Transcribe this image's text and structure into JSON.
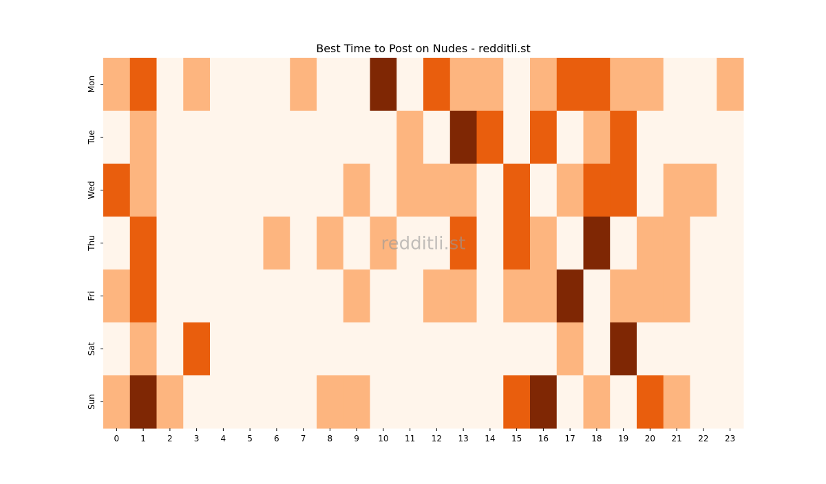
{
  "chart_data": {
    "type": "heatmap",
    "title": "Best Time to Post on Nudes - redditli.st",
    "annotation": "redditli.st",
    "x": [
      "0",
      "1",
      "2",
      "3",
      "4",
      "5",
      "6",
      "7",
      "8",
      "9",
      "10",
      "11",
      "12",
      "13",
      "14",
      "15",
      "16",
      "17",
      "18",
      "19",
      "20",
      "21",
      "22",
      "23"
    ],
    "categories": [
      "Mon",
      "Tue",
      "Wed",
      "Thu",
      "Fri",
      "Sat",
      "Sun"
    ],
    "cmap": [
      "#fff5eb",
      "#fdb57f",
      "#e95e0d",
      "#7f2704"
    ],
    "values": [
      [
        1,
        2,
        0,
        1,
        0,
        0,
        0,
        1,
        0,
        0,
        3,
        0,
        2,
        1,
        1,
        0,
        1,
        2,
        2,
        1,
        1,
        0,
        0,
        1
      ],
      [
        0,
        1,
        0,
        0,
        0,
        0,
        0,
        0,
        0,
        0,
        0,
        1,
        0,
        3,
        2,
        0,
        2,
        0,
        1,
        2,
        0,
        0,
        0,
        0
      ],
      [
        2,
        1,
        0,
        0,
        0,
        0,
        0,
        0,
        0,
        1,
        0,
        1,
        1,
        1,
        0,
        2,
        0,
        1,
        2,
        2,
        0,
        1,
        1,
        0
      ],
      [
        0,
        2,
        0,
        0,
        0,
        0,
        1,
        0,
        1,
        0,
        1,
        0,
        0,
        2,
        0,
        2,
        1,
        0,
        3,
        0,
        1,
        1,
        0,
        0
      ],
      [
        1,
        2,
        0,
        0,
        0,
        0,
        0,
        0,
        0,
        1,
        0,
        0,
        1,
        1,
        0,
        1,
        1,
        3,
        0,
        1,
        1,
        1,
        0,
        0
      ],
      [
        0,
        1,
        0,
        2,
        0,
        0,
        0,
        0,
        0,
        0,
        0,
        0,
        0,
        0,
        0,
        0,
        0,
        1,
        0,
        3,
        0,
        0,
        0,
        0
      ],
      [
        1,
        3,
        1,
        0,
        0,
        0,
        0,
        0,
        1,
        1,
        0,
        0,
        0,
        0,
        0,
        2,
        3,
        0,
        1,
        0,
        2,
        1,
        0,
        0
      ]
    ]
  }
}
